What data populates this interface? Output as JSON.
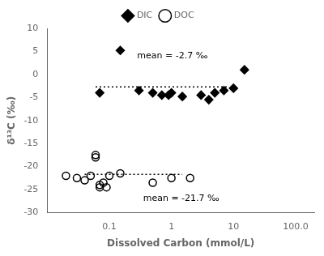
{
  "chart_data": {
    "type": "scatter",
    "xlabel": "Dissolved Carbon (mmol/L)",
    "ylabel": "δ¹³C (‰)",
    "log": "x",
    "xlim": [
      0.01,
      200.0
    ],
    "ylim": [
      -30,
      10
    ],
    "xticks": [
      0.1,
      1,
      10,
      {
        "value": 100,
        "label": "100.0"
      }
    ],
    "yticks": [
      10,
      5,
      0,
      -5,
      -10,
      -15,
      -20,
      -25,
      -30
    ],
    "grid": false,
    "legend": "top",
    "series": [
      {
        "name": "DIC",
        "type": "scatter",
        "marker": "diamond",
        "color": "black",
        "x": [
          0.07,
          0.15,
          0.3,
          0.5,
          0.7,
          0.9,
          1.0,
          1.5,
          3.0,
          4.0,
          5.0,
          7.0,
          10.0,
          15.0
        ],
        "values": [
          -4.0,
          5.2,
          -3.5,
          -4.0,
          -4.5,
          -4.5,
          -4.0,
          -4.8,
          -4.5,
          -5.5,
          -4.0,
          -3.5,
          -3.0,
          1.0
        ]
      },
      {
        "name": "DOC",
        "type": "scatter",
        "marker": "open_circle",
        "color": "black",
        "x": [
          0.02,
          0.03,
          0.04,
          0.05,
          0.06,
          0.06,
          0.07,
          0.07,
          0.08,
          0.09,
          0.1,
          0.15,
          0.5,
          1.0,
          2.0
        ],
        "values": [
          -22.0,
          -22.5,
          -23.0,
          -22.0,
          -17.5,
          -18.0,
          -24.0,
          -24.5,
          -23.5,
          -24.5,
          -22.0,
          -21.5,
          -23.5,
          -22.5,
          -22.5
        ]
      },
      {
        "type": "line",
        "line_style": "dotted",
        "color": "black",
        "x": [
          0.06,
          8.0
        ],
        "values": [
          -2.7,
          -2.7
        ]
      },
      {
        "type": "line",
        "line_style": "dotted",
        "color": "black",
        "x": [
          0.04,
          1.5
        ],
        "values": [
          -21.7,
          -21.7
        ]
      }
    ],
    "annotations": [
      {
        "text": "mean = -2.7 ‰",
        "x": 0.28,
        "y": 3.5
      },
      {
        "text": "mean = -21.7 ‰",
        "x": 0.35,
        "y": -27.5
      }
    ]
  }
}
